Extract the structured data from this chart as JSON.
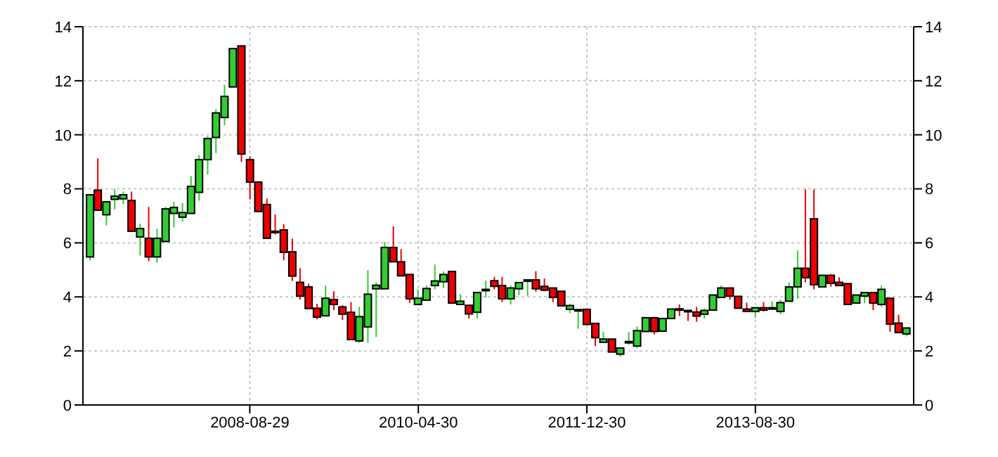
{
  "chart_data": {
    "type": "candlestick",
    "x": [
      "2007-01-31",
      "2007-02-28",
      "2007-03-31",
      "2007-04-30",
      "2007-05-31",
      "2007-06-30",
      "2007-07-31",
      "2007-08-31",
      "2007-09-30",
      "2007-10-31",
      "2007-11-30",
      "2007-12-31",
      "2008-01-31",
      "2008-02-29",
      "2008-03-31",
      "2008-04-30",
      "2008-05-31",
      "2008-06-30",
      "2008-07-31",
      "2008-08-31",
      "2008-09-30",
      "2008-10-31",
      "2008-11-30",
      "2008-12-31",
      "2009-01-31",
      "2009-02-28",
      "2009-03-31",
      "2009-04-30",
      "2009-05-31",
      "2009-06-30",
      "2009-07-31",
      "2009-08-31",
      "2009-09-30",
      "2009-10-31",
      "2009-11-30",
      "2009-12-31",
      "2010-01-31",
      "2010-02-28",
      "2010-03-31",
      "2010-04-30",
      "2010-05-31",
      "2010-06-30",
      "2010-07-31",
      "2010-08-31",
      "2010-09-30",
      "2010-10-31",
      "2010-11-30",
      "2010-12-31",
      "2011-01-31",
      "2011-02-28",
      "2011-03-31",
      "2011-04-30",
      "2011-05-31",
      "2011-06-30",
      "2011-07-31",
      "2011-08-31",
      "2011-09-30",
      "2011-10-31",
      "2011-11-30",
      "2011-12-31",
      "2012-01-31",
      "2012-02-29",
      "2012-03-31",
      "2012-04-30",
      "2012-05-31",
      "2012-06-30",
      "2012-07-31",
      "2012-08-31",
      "2012-09-30",
      "2012-10-31",
      "2012-11-30",
      "2012-12-31",
      "2013-01-31",
      "2013-02-28",
      "2013-03-31",
      "2013-04-30",
      "2013-05-31",
      "2013-06-30",
      "2013-07-31",
      "2013-08-31",
      "2013-09-30",
      "2013-10-31",
      "2013-11-30",
      "2013-12-31",
      "2014-01-31",
      "2014-02-28",
      "2014-03-31",
      "2014-04-30",
      "2014-05-31",
      "2014-06-30",
      "2014-07-31",
      "2014-08-31",
      "2014-09-30",
      "2014-10-31",
      "2014-11-30",
      "2014-12-31",
      "2015-01-31",
      "2015-02-28"
    ],
    "ohlc": [
      [
        5.48,
        7.78,
        5.35,
        7.78
      ],
      [
        7.95,
        9.13,
        7.21,
        7.21
      ],
      [
        7.04,
        7.52,
        6.65,
        7.52
      ],
      [
        7.61,
        7.99,
        7.24,
        7.73
      ],
      [
        7.63,
        7.9,
        7.43,
        7.78
      ],
      [
        7.57,
        7.9,
        6.43,
        6.43
      ],
      [
        6.22,
        6.71,
        5.53,
        6.53
      ],
      [
        6.17,
        7.33,
        5.32,
        5.48
      ],
      [
        5.48,
        6.53,
        5.27,
        6.17
      ],
      [
        6.05,
        7.33,
        6.05,
        7.26
      ],
      [
        7.09,
        7.52,
        6.57,
        7.31
      ],
      [
        6.95,
        7.47,
        6.78,
        7.12
      ],
      [
        7.09,
        8.47,
        7.09,
        8.09
      ],
      [
        7.87,
        9.25,
        7.56,
        9.08
      ],
      [
        9.08,
        9.95,
        8.53,
        9.86
      ],
      [
        9.9,
        10.95,
        9.32,
        10.81
      ],
      [
        10.64,
        11.85,
        10.35,
        11.42
      ],
      [
        11.77,
        13.19,
        11.77,
        13.19
      ],
      [
        13.29,
        13.29,
        8.99,
        9.29
      ],
      [
        9.08,
        9.2,
        7.61,
        8.25
      ],
      [
        8.25,
        8.25,
        7.16,
        7.16
      ],
      [
        7.42,
        7.64,
        6.17,
        6.17
      ],
      [
        6.43,
        7.05,
        6.31,
        6.4
      ],
      [
        6.48,
        6.69,
        5.35,
        5.65
      ],
      [
        5.67,
        6.16,
        4.59,
        4.77
      ],
      [
        4.54,
        5.06,
        3.9,
        4.03
      ],
      [
        4.37,
        4.49,
        3.57,
        3.57
      ],
      [
        3.58,
        3.74,
        3.17,
        3.25
      ],
      [
        3.3,
        4.42,
        3.3,
        3.95
      ],
      [
        3.9,
        4.21,
        3.51,
        3.72
      ],
      [
        3.63,
        3.69,
        3.15,
        3.36
      ],
      [
        3.43,
        3.81,
        2.42,
        2.42
      ],
      [
        2.37,
        3.63,
        2.3,
        3.27
      ],
      [
        2.89,
        4.99,
        2.3,
        4.1
      ],
      [
        4.3,
        4.54,
        2.52,
        4.43
      ],
      [
        4.3,
        6.03,
        4.3,
        5.83
      ],
      [
        5.83,
        6.61,
        5.3,
        5.3
      ],
      [
        5.3,
        5.77,
        4.78,
        4.78
      ],
      [
        4.83,
        4.83,
        3.77,
        3.93
      ],
      [
        3.72,
        4.28,
        3.72,
        3.95
      ],
      [
        3.88,
        4.42,
        3.88,
        4.31
      ],
      [
        4.42,
        5.2,
        4.28,
        4.59
      ],
      [
        4.56,
        4.94,
        4.33,
        4.83
      ],
      [
        4.94,
        4.94,
        3.77,
        3.77
      ],
      [
        3.72,
        4.1,
        3.72,
        3.84
      ],
      [
        3.69,
        3.69,
        3.2,
        3.37
      ],
      [
        3.43,
        4.16,
        3.2,
        4.16
      ],
      [
        4.26,
        4.6,
        3.98,
        4.28
      ],
      [
        4.6,
        4.74,
        4.28,
        4.39
      ],
      [
        4.42,
        4.74,
        3.81,
        3.93
      ],
      [
        3.93,
        4.42,
        3.72,
        4.33
      ],
      [
        4.3,
        4.53,
        4.07,
        4.53
      ],
      [
        4.62,
        4.63,
        4.04,
        4.63
      ],
      [
        4.63,
        4.95,
        4.19,
        4.3
      ],
      [
        4.39,
        4.68,
        4.21,
        4.25
      ],
      [
        4.33,
        4.33,
        3.81,
        3.98
      ],
      [
        4.21,
        4.21,
        3.67,
        3.67
      ],
      [
        3.54,
        3.75,
        3.4,
        3.68
      ],
      [
        3.52,
        3.54,
        2.82,
        3.53
      ],
      [
        3.54,
        3.54,
        2.98,
        2.98
      ],
      [
        3.02,
        3.02,
        2.18,
        2.49
      ],
      [
        2.32,
        2.7,
        2.32,
        2.44
      ],
      [
        2.44,
        2.44,
        1.96,
        1.96
      ],
      [
        1.88,
        2.11,
        1.79,
        2.11
      ],
      [
        2.33,
        2.7,
        2.23,
        2.35
      ],
      [
        2.18,
        2.91,
        2.11,
        2.75
      ],
      [
        2.72,
        3.23,
        2.72,
        3.23
      ],
      [
        3.23,
        3.23,
        2.61,
        2.72
      ],
      [
        2.73,
        3.23,
        2.73,
        3.2
      ],
      [
        3.2,
        3.55,
        3.19,
        3.55
      ],
      [
        3.56,
        3.72,
        3.29,
        3.54
      ],
      [
        3.5,
        3.5,
        3.11,
        3.48
      ],
      [
        3.44,
        3.63,
        3.08,
        3.29
      ],
      [
        3.36,
        3.58,
        3.2,
        3.5
      ],
      [
        3.51,
        4.07,
        3.51,
        4.07
      ],
      [
        3.98,
        4.42,
        3.98,
        4.33
      ],
      [
        4.33,
        4.33,
        3.9,
        4.03
      ],
      [
        4.02,
        4.02,
        3.58,
        3.58
      ],
      [
        3.55,
        3.79,
        3.46,
        3.46
      ],
      [
        3.46,
        3.6,
        3.23,
        3.6
      ],
      [
        3.6,
        3.81,
        3.46,
        3.51
      ],
      [
        3.58,
        3.84,
        3.55,
        3.6
      ],
      [
        3.46,
        3.9,
        3.36,
        3.79
      ],
      [
        3.84,
        4.54,
        3.84,
        4.37
      ],
      [
        4.37,
        5.72,
        3.93,
        5.06
      ],
      [
        5.06,
        7.98,
        4.54,
        4.71
      ],
      [
        6.89,
        7.98,
        4.28,
        4.45
      ],
      [
        4.37,
        4.8,
        4.37,
        4.8
      ],
      [
        4.8,
        4.85,
        4.38,
        4.5
      ],
      [
        4.54,
        4.73,
        4.42,
        4.42
      ],
      [
        4.49,
        4.49,
        3.72,
        3.72
      ],
      [
        3.77,
        4.07,
        3.77,
        4.07
      ],
      [
        4.03,
        4.16,
        3.77,
        4.16
      ],
      [
        4.16,
        4.16,
        3.51,
        3.77
      ],
      [
        3.72,
        4.42,
        3.63,
        4.28
      ],
      [
        3.95,
        3.95,
        2.71,
        2.99
      ],
      [
        3.03,
        3.34,
        2.68,
        2.68
      ],
      [
        2.63,
        2.85,
        2.54,
        2.85
      ]
    ],
    "colors": [
      "#33cc33",
      "#ee0000",
      "#33cc33",
      "#33cc33",
      "#33cc33",
      "#ee0000",
      "#33cc33",
      "#ee0000",
      "#33cc33",
      "#33cc33",
      "#33cc33",
      "#33cc33",
      "#33cc33",
      "#33cc33",
      "#33cc33",
      "#33cc33",
      "#33cc33",
      "#33cc33",
      "#ee0000",
      "#ee0000",
      "#ee0000",
      "#ee0000",
      "#ee0000",
      "#ee0000",
      "#ee0000",
      "#ee0000",
      "#ee0000",
      "#ee0000",
      "#33cc33",
      "#ee0000",
      "#ee0000",
      "#ee0000",
      "#33cc33",
      "#33cc33",
      "#33cc33",
      "#33cc33",
      "#ee0000",
      "#ee0000",
      "#ee0000",
      "#33cc33",
      "#33cc33",
      "#33cc33",
      "#33cc33",
      "#ee0000",
      "#33cc33",
      "#ee0000",
      "#33cc33",
      "#33cc33",
      "#ee0000",
      "#ee0000",
      "#33cc33",
      "#33cc33",
      "#33cc33",
      "#ee0000",
      "#ee0000",
      "#ee0000",
      "#ee0000",
      "#33cc33",
      "#33cc33",
      "#ee0000",
      "#ee0000",
      "#33cc33",
      "#ee0000",
      "#33cc33",
      "#33cc33",
      "#33cc33",
      "#33cc33",
      "#ee0000",
      "#33cc33",
      "#33cc33",
      "#ee0000",
      "#ee0000",
      "#ee0000",
      "#33cc33",
      "#33cc33",
      "#33cc33",
      "#ee0000",
      "#ee0000",
      "#ee0000",
      "#33cc33",
      "#ee0000",
      "#33cc33",
      "#33cc33",
      "#33cc33",
      "#33cc33",
      "#ee0000",
      "#ee0000",
      "#33cc33",
      "#ee0000",
      "#ee0000",
      "#ee0000",
      "#33cc33",
      "#33cc33",
      "#ee0000",
      "#33cc33",
      "#ee0000",
      "#ee0000",
      "#33cc33"
    ],
    "xlim": [
      "2007-01-04",
      "2015-03-25"
    ],
    "xticks": [
      "2008-08-29",
      "2010-04-30",
      "2011-12-30",
      "2013-08-30"
    ],
    "ylim": [
      0,
      14
    ],
    "yticks": [
      0,
      2,
      4,
      6,
      8,
      10,
      12,
      14
    ],
    "y2lim": [
      0,
      14
    ],
    "y2ticks": [
      0,
      2,
      4,
      6,
      8,
      10,
      12,
      14
    ],
    "grid": true
  }
}
